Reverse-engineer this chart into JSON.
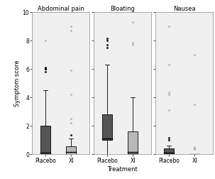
{
  "panels": [
    {
      "title": "Abdominal pain",
      "placebo": {
        "q1": 0.0,
        "median": 0.1,
        "q3": 2.0,
        "whisker_low": 0.0,
        "whisker_high": 4.5,
        "outliers_dark": [
          5.8,
          6.0,
          6.1,
          6.05,
          6.0
        ],
        "outliers_light": [
          8.0
        ]
      },
      "xi": {
        "q1": 0.0,
        "median": 0.15,
        "q3": 0.55,
        "whisker_low": 0.0,
        "whisker_high": 1.1,
        "outliers_dark": [
          1.35
        ],
        "outliers_light": [
          9.0,
          8.7,
          5.9,
          4.2,
          2.5,
          2.2
        ]
      }
    },
    {
      "title": "Bloating",
      "placebo": {
        "q1": 1.0,
        "median": 1.1,
        "q3": 2.8,
        "whisker_low": 0.0,
        "whisker_high": 6.3,
        "outliers_dark": [
          7.5,
          7.7,
          8.0,
          8.15
        ],
        "outliers_light": []
      },
      "xi": {
        "q1": 0.05,
        "median": 0.15,
        "q3": 1.6,
        "whisker_low": 0.0,
        "whisker_high": 4.0,
        "outliers_dark": [],
        "outliers_light": [
          9.3,
          7.85,
          7.7
        ]
      }
    },
    {
      "title": "Nausea",
      "placebo": {
        "q1": 0.0,
        "median": 0.1,
        "q3": 0.38,
        "whisker_low": 0.0,
        "whisker_high": 0.6,
        "outliers_dark": [
          1.0,
          1.15
        ],
        "outliers_light": [
          9.0,
          6.3,
          4.35,
          4.2,
          3.1
        ]
      },
      "xi": {
        "q1": 0.0,
        "median": 0.0,
        "q3": 0.0,
        "whisker_low": 0.0,
        "whisker_high": 0.0,
        "outliers_dark": [],
        "outliers_light": [
          7.0,
          3.5,
          0.5,
          0.4,
          0.35
        ]
      }
    }
  ],
  "ylim": [
    0,
    10
  ],
  "yticks": [
    0,
    2,
    4,
    6,
    8,
    10
  ],
  "ylabel": "Symptom score",
  "xlabel": "Treatment",
  "placebo_color": "#555555",
  "xi_color": "#b8b8b8",
  "dark_outlier_color": "#111111",
  "light_outlier_color": "#aaaaaa",
  "fig_bg": "#ffffff",
  "panel_bg": "#f0f0f0",
  "box_width": 0.38
}
